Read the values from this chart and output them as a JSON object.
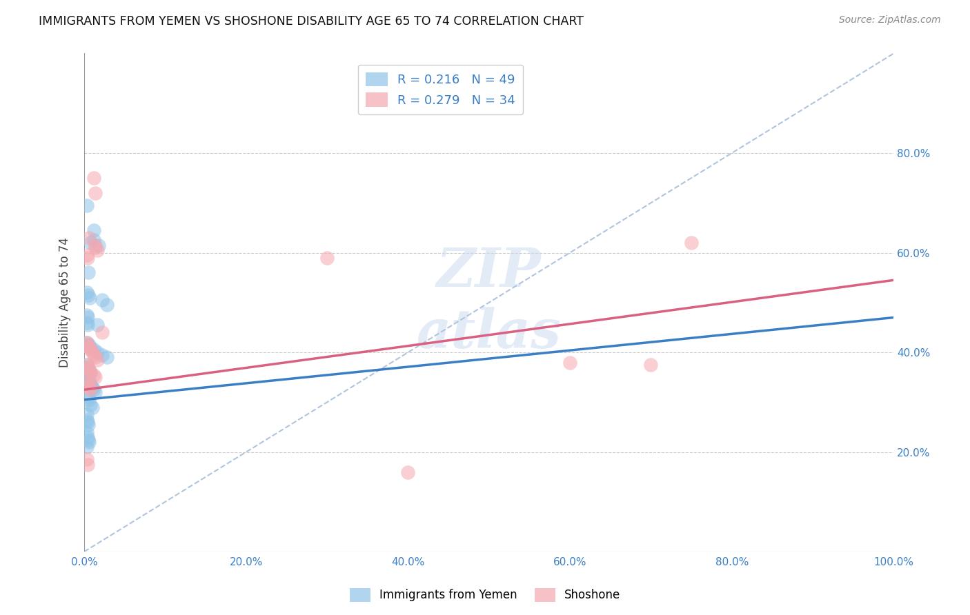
{
  "title": "IMMIGRANTS FROM YEMEN VS SHOSHONE DISABILITY AGE 65 TO 74 CORRELATION CHART",
  "source": "Source: ZipAtlas.com",
  "ylabel": "Disability Age 65 to 74",
  "xlim": [
    0.0,
    1.0
  ],
  "ylim": [
    0.0,
    1.0
  ],
  "xtick_positions": [
    0.0,
    0.2,
    0.4,
    0.6,
    0.8,
    1.0
  ],
  "xtick_labels": [
    "0.0%",
    "20.0%",
    "40.0%",
    "60.0%",
    "80.0%",
    "100.0%"
  ],
  "ytick_positions": [
    0.2,
    0.4,
    0.6,
    0.8
  ],
  "ytick_labels": [
    "20.0%",
    "40.0%",
    "60.0%",
    "80.0%"
  ],
  "legend_R1": "R = 0.216",
  "legend_N1": "N = 49",
  "legend_R2": "R = 0.279",
  "legend_N2": "N = 34",
  "blue_color": "#91c4e8",
  "pink_color": "#f5a8b0",
  "blue_line_color": "#3a7ec6",
  "pink_line_color": "#d96080",
  "dashed_line_color": "#b0c4de",
  "watermark_color": "#c8d8ee",
  "series1_label": "Immigrants from Yemen",
  "series2_label": "Shoshone",
  "blue_line_x0": 0.0,
  "blue_line_y0": 0.305,
  "blue_line_x1": 1.0,
  "blue_line_y1": 0.47,
  "pink_line_x0": 0.0,
  "pink_line_y0": 0.325,
  "pink_line_x1": 1.0,
  "pink_line_y1": 0.545,
  "blue_scatter": [
    [
      0.003,
      0.695
    ],
    [
      0.012,
      0.645
    ],
    [
      0.012,
      0.625
    ],
    [
      0.008,
      0.62
    ],
    [
      0.018,
      0.615
    ],
    [
      0.005,
      0.56
    ],
    [
      0.003,
      0.52
    ],
    [
      0.005,
      0.515
    ],
    [
      0.007,
      0.51
    ],
    [
      0.022,
      0.505
    ],
    [
      0.028,
      0.495
    ],
    [
      0.003,
      0.475
    ],
    [
      0.004,
      0.47
    ],
    [
      0.003,
      0.46
    ],
    [
      0.004,
      0.455
    ],
    [
      0.016,
      0.455
    ],
    [
      0.003,
      0.42
    ],
    [
      0.004,
      0.415
    ],
    [
      0.006,
      0.415
    ],
    [
      0.008,
      0.41
    ],
    [
      0.012,
      0.405
    ],
    [
      0.016,
      0.4
    ],
    [
      0.022,
      0.395
    ],
    [
      0.028,
      0.39
    ],
    [
      0.003,
      0.375
    ],
    [
      0.004,
      0.37
    ],
    [
      0.006,
      0.365
    ],
    [
      0.008,
      0.36
    ],
    [
      0.003,
      0.355
    ],
    [
      0.004,
      0.35
    ],
    [
      0.005,
      0.345
    ],
    [
      0.007,
      0.34
    ],
    [
      0.008,
      0.335
    ],
    [
      0.01,
      0.33
    ],
    [
      0.012,
      0.325
    ],
    [
      0.014,
      0.32
    ],
    [
      0.005,
      0.31
    ],
    [
      0.006,
      0.305
    ],
    [
      0.008,
      0.295
    ],
    [
      0.01,
      0.29
    ],
    [
      0.003,
      0.275
    ],
    [
      0.003,
      0.265
    ],
    [
      0.004,
      0.26
    ],
    [
      0.005,
      0.255
    ],
    [
      0.003,
      0.24
    ],
    [
      0.004,
      0.23
    ],
    [
      0.005,
      0.225
    ],
    [
      0.006,
      0.22
    ],
    [
      0.003,
      0.21
    ]
  ],
  "pink_scatter": [
    [
      0.012,
      0.75
    ],
    [
      0.014,
      0.72
    ],
    [
      0.006,
      0.63
    ],
    [
      0.014,
      0.615
    ],
    [
      0.014,
      0.61
    ],
    [
      0.016,
      0.605
    ],
    [
      0.003,
      0.595
    ],
    [
      0.004,
      0.59
    ],
    [
      0.022,
      0.44
    ],
    [
      0.003,
      0.42
    ],
    [
      0.004,
      0.415
    ],
    [
      0.006,
      0.41
    ],
    [
      0.008,
      0.405
    ],
    [
      0.01,
      0.4
    ],
    [
      0.012,
      0.395
    ],
    [
      0.014,
      0.39
    ],
    [
      0.016,
      0.385
    ],
    [
      0.003,
      0.375
    ],
    [
      0.004,
      0.37
    ],
    [
      0.006,
      0.365
    ],
    [
      0.008,
      0.36
    ],
    [
      0.012,
      0.355
    ],
    [
      0.014,
      0.35
    ],
    [
      0.003,
      0.34
    ],
    [
      0.004,
      0.335
    ],
    [
      0.006,
      0.33
    ],
    [
      0.008,
      0.325
    ],
    [
      0.003,
      0.185
    ],
    [
      0.004,
      0.175
    ],
    [
      0.4,
      0.16
    ],
    [
      0.6,
      0.38
    ],
    [
      0.7,
      0.375
    ],
    [
      0.75,
      0.62
    ],
    [
      0.3,
      0.59
    ]
  ]
}
